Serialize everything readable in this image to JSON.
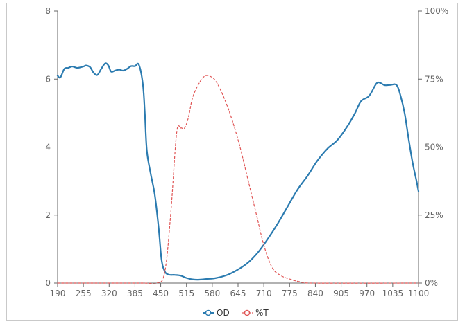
{
  "chart_data": {
    "type": "line",
    "x_axis": {
      "range": [
        190,
        1100
      ],
      "ticks": [
        "190",
        "255",
        "320",
        "385",
        "450",
        "515",
        "580",
        "645",
        "710",
        "775",
        "840",
        "905",
        "970",
        "1035",
        "1100"
      ]
    },
    "y_axis_left": {
      "range": [
        0,
        8
      ],
      "ticks": [
        "0",
        "2",
        "4",
        "6",
        "8"
      ]
    },
    "y_axis_right": {
      "range": [
        0,
        100
      ],
      "ticks": [
        "0%",
        "25%",
        "50%",
        "75%",
        "100%"
      ]
    },
    "legend_position": "bottom-center",
    "grid": false,
    "series": [
      {
        "name": "OD",
        "axis": "left",
        "color": "#2b7bb0",
        "style": "solid",
        "points": [
          [
            190,
            6.1
          ],
          [
            197,
            6.05
          ],
          [
            207,
            6.3
          ],
          [
            217,
            6.33
          ],
          [
            227,
            6.37
          ],
          [
            240,
            6.33
          ],
          [
            255,
            6.37
          ],
          [
            262,
            6.4
          ],
          [
            272,
            6.35
          ],
          [
            280,
            6.2
          ],
          [
            290,
            6.12
          ],
          [
            300,
            6.3
          ],
          [
            310,
            6.46
          ],
          [
            318,
            6.4
          ],
          [
            325,
            6.22
          ],
          [
            335,
            6.25
          ],
          [
            345,
            6.28
          ],
          [
            355,
            6.25
          ],
          [
            365,
            6.3
          ],
          [
            375,
            6.38
          ],
          [
            385,
            6.38
          ],
          [
            395,
            6.42
          ],
          [
            405,
            5.85
          ],
          [
            410,
            5.0
          ],
          [
            415,
            3.9
          ],
          [
            425,
            3.2
          ],
          [
            435,
            2.6
          ],
          [
            445,
            1.6
          ],
          [
            452,
            0.7
          ],
          [
            460,
            0.35
          ],
          [
            470,
            0.25
          ],
          [
            485,
            0.24
          ],
          [
            500,
            0.22
          ],
          [
            515,
            0.15
          ],
          [
            530,
            0.11
          ],
          [
            545,
            0.1
          ],
          [
            565,
            0.12
          ],
          [
            590,
            0.15
          ],
          [
            620,
            0.25
          ],
          [
            645,
            0.4
          ],
          [
            670,
            0.6
          ],
          [
            695,
            0.9
          ],
          [
            720,
            1.3
          ],
          [
            745,
            1.75
          ],
          [
            770,
            2.25
          ],
          [
            795,
            2.75
          ],
          [
            820,
            3.15
          ],
          [
            845,
            3.6
          ],
          [
            870,
            3.95
          ],
          [
            895,
            4.2
          ],
          [
            920,
            4.6
          ],
          [
            940,
            5.0
          ],
          [
            955,
            5.35
          ],
          [
            975,
            5.5
          ],
          [
            990,
            5.8
          ],
          [
            997,
            5.9
          ],
          [
            1005,
            5.88
          ],
          [
            1015,
            5.82
          ],
          [
            1030,
            5.83
          ],
          [
            1045,
            5.82
          ],
          [
            1055,
            5.5
          ],
          [
            1065,
            5.0
          ],
          [
            1075,
            4.25
          ],
          [
            1085,
            3.55
          ],
          [
            1095,
            3.0
          ],
          [
            1100,
            2.7
          ]
        ]
      },
      {
        "name": "%T",
        "axis": "right",
        "color": "#e05555",
        "style": "dashed",
        "points": [
          [
            190,
            0
          ],
          [
            400,
            0
          ],
          [
            440,
            0
          ],
          [
            460,
            4
          ],
          [
            475,
            25
          ],
          [
            490,
            55
          ],
          [
            500,
            57
          ],
          [
            510,
            57
          ],
          [
            520,
            61
          ],
          [
            530,
            68
          ],
          [
            545,
            73
          ],
          [
            560,
            76
          ],
          [
            575,
            76
          ],
          [
            590,
            74
          ],
          [
            610,
            68
          ],
          [
            630,
            60
          ],
          [
            650,
            50
          ],
          [
            670,
            38
          ],
          [
            690,
            26
          ],
          [
            710,
            14
          ],
          [
            730,
            6
          ],
          [
            750,
            3
          ],
          [
            775,
            1.5
          ],
          [
            800,
            0.5
          ],
          [
            830,
            0
          ],
          [
            1100,
            0
          ]
        ]
      }
    ]
  }
}
